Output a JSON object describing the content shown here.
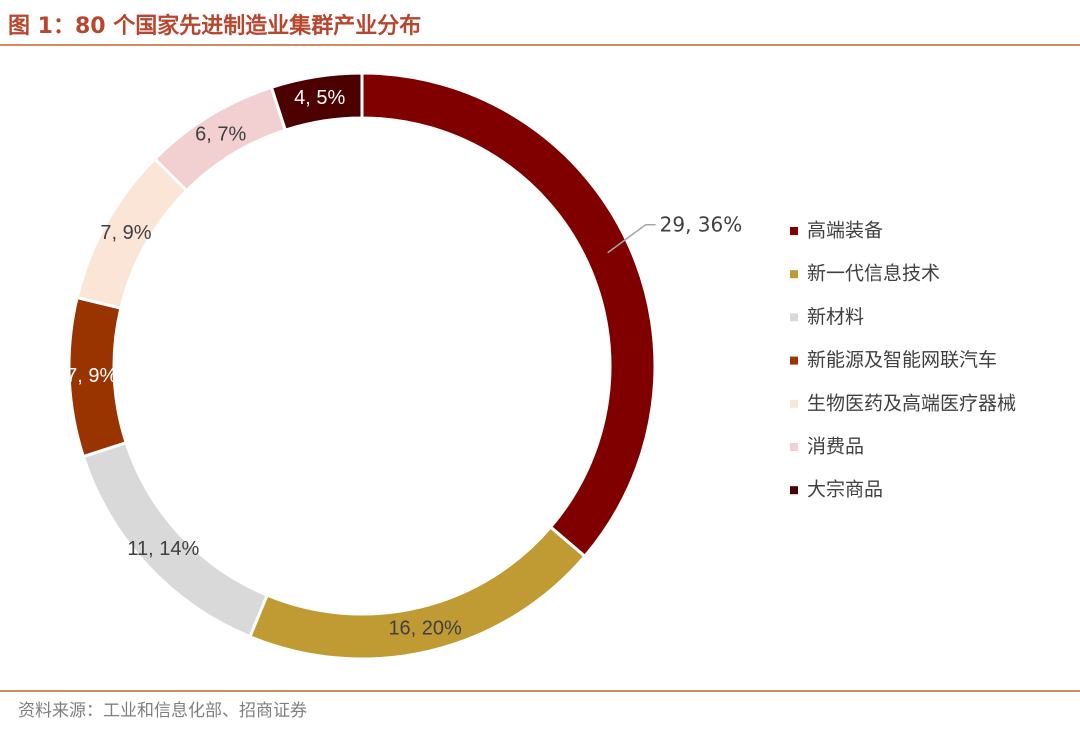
{
  "chart_data": {
    "type": "donut",
    "title": "图 1：80 个国家先进制造业集群产业分布",
    "source": "资料来源：工业和信息化部、招商证券",
    "categories": [
      "高端装备",
      "新一代信息技术",
      "新材料",
      "新能源及智能网联汽车",
      "生物医药及高端医疗器械",
      "消费品",
      "大宗商品"
    ],
    "values": [
      29,
      16,
      11,
      7,
      7,
      6,
      4
    ],
    "value_labels": [
      "29, 36%",
      "16, 20%",
      "11, 14%",
      "7, 9%",
      "7, 9%",
      "6, 7%",
      "4, 5%"
    ],
    "colors": [
      "#800000",
      "#c09a32",
      "#d9d9d9",
      "#993300",
      "#fbe5d6",
      "#f2cfd0",
      "#4d0000"
    ],
    "legend": "right"
  }
}
